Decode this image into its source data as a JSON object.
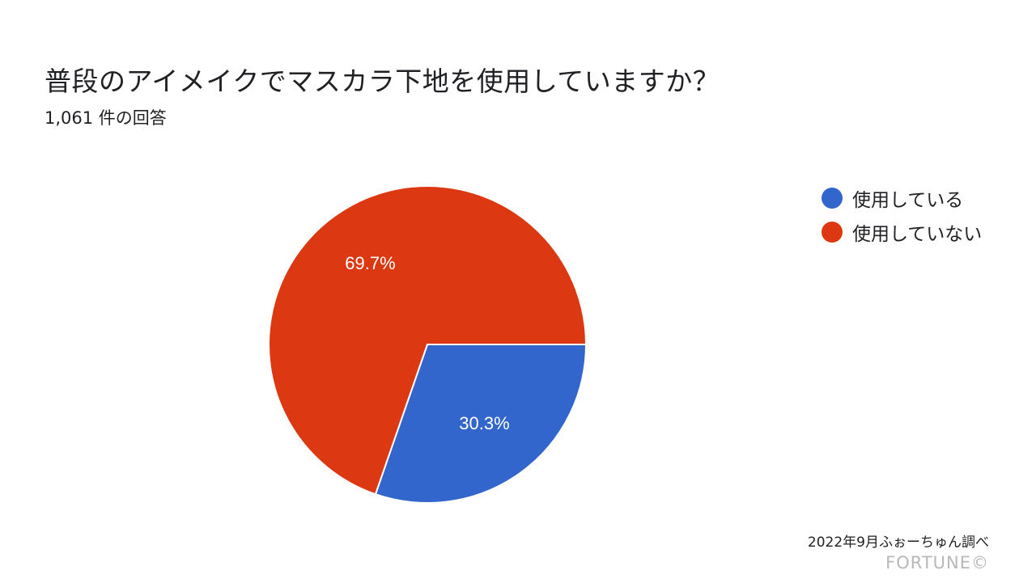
{
  "header": {
    "title": "普段のアイメイクでマスカラ下地を使用していますか？",
    "subtitle": "1,061 件の回答"
  },
  "chart_data": {
    "type": "pie",
    "categories": [
      "使用している",
      "使用していない"
    ],
    "values": [
      30.3,
      69.7
    ],
    "value_labels": [
      "30.3%",
      "69.7%"
    ],
    "colors": [
      "#3366cc",
      "#dc3912"
    ],
    "title": "普段のアイメイクでマスカラ下地を使用していますか？",
    "legend_position": "right"
  },
  "legend": {
    "items": [
      {
        "label": "使用している",
        "color": "#3366cc"
      },
      {
        "label": "使用していない",
        "color": "#dc3912"
      }
    ]
  },
  "footer": {
    "source": "2022年9月ふぉーちゅん調べ",
    "brand": "FORTUNE©"
  }
}
